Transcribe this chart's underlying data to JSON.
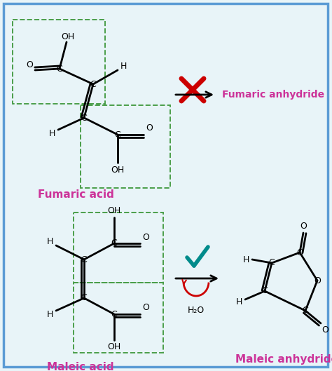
{
  "bg_color": "#e8f4f8",
  "border_color": "#5b9bd5",
  "green_dashed": "#4a9e4a",
  "magenta_text": "#cc3399",
  "red_x_color": "#cc0000",
  "teal_check": "#008B8B",
  "red_arrow_color": "#cc0000",
  "title_top": "Fumaric acid",
  "title_bottom": "Maleic acid",
  "label_fumaric_anhydride": "Fumaric anhydride",
  "label_maleic_anhydride": "Maleic anhydride",
  "h2o_label": "H₂O"
}
